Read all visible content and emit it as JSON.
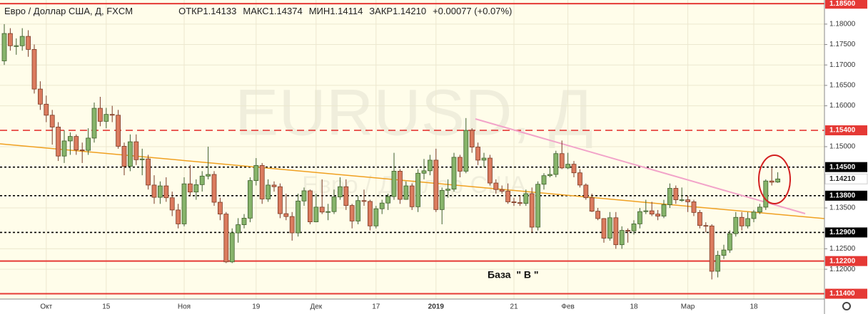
{
  "chart_data": {
    "type": "candlestick",
    "title": "Евро / Доллар США, Д, FXCM",
    "ohlc_header": [
      {
        "label": "ОТКР",
        "value": "1.14133"
      },
      {
        "label": "МАКС",
        "value": "1.14374"
      },
      {
        "label": "МИН",
        "value": "1.14114"
      },
      {
        "label": "ЗАКР",
        "value": "1.14210"
      }
    ],
    "change": "+0.00077 (+0.07%)",
    "watermark": "EURUSD, Д",
    "watermark_subtitle": "Евро / Доллар США",
    "annotation": "База  \" В \"",
    "up_color": "#86b46a",
    "down_color": "#db7b5e",
    "categories": [
      null,
      null,
      null,
      null,
      null,
      null,
      null,
      "Окт",
      null,
      null,
      null,
      null,
      null,
      null,
      null,
      null,
      null,
      "15",
      null,
      null,
      null,
      null,
      null,
      null,
      null,
      null,
      null,
      null,
      null,
      null,
      "Ноя",
      null,
      null,
      null,
      null,
      null,
      null,
      null,
      null,
      null,
      null,
      null,
      "19",
      null,
      null,
      null,
      null,
      null,
      null,
      null,
      null,
      null,
      "Дек",
      null,
      null,
      null,
      null,
      null,
      null,
      null,
      null,
      null,
      "17",
      null,
      null,
      null,
      null,
      null,
      null,
      null,
      null,
      null,
      "2019",
      null,
      null,
      null,
      null,
      null,
      null,
      null,
      null,
      null,
      null,
      null,
      null,
      "21",
      null,
      null,
      null,
      null,
      null,
      null,
      null,
      null,
      "Фев",
      null,
      null,
      null,
      null,
      null,
      null,
      null,
      null,
      null,
      null,
      "18",
      null,
      null,
      null,
      null,
      null,
      null,
      null,
      null,
      "Мар",
      null,
      null,
      null,
      null,
      null,
      null,
      null,
      null,
      null,
      null,
      "18",
      null,
      null,
      null,
      null
    ],
    "open": [
      1.171,
      1.1777,
      1.1747,
      1.1747,
      1.177,
      1.1738,
      1.1641,
      1.1604,
      1.1577,
      1.1548,
      1.1477,
      1.1514,
      1.1525,
      1.1492,
      1.1491,
      1.1521,
      1.1594,
      1.1562,
      1.1579,
      1.1577,
      1.1501,
      1.1452,
      1.1512,
      1.1468,
      1.147,
      1.1406,
      1.1376,
      1.1404,
      1.1375,
      1.1345,
      1.1311,
      1.1409,
      1.1389,
      1.1407,
      1.1428,
      1.1432,
      1.1364,
      1.1335,
      1.1218,
      1.1289,
      1.1309,
      1.1325,
      1.1417,
      1.1454,
      1.1372,
      1.1406,
      1.1402,
      1.1336,
      1.1329,
      1.1289,
      1.1367,
      1.1392,
      1.1316,
      1.1352,
      1.134,
      1.1341,
      1.1377,
      1.1402,
      1.1356,
      1.1318,
      1.1368,
      1.1366,
      1.1306,
      1.1348,
      1.1362,
      1.1378,
      1.144,
      1.1371,
      1.1404,
      1.1353,
      1.1435,
      1.1441,
      1.1467,
      1.1346,
      1.1393,
      1.1396,
      1.1474,
      1.144,
      1.154,
      1.1499,
      1.1467,
      1.1472,
      1.1411,
      1.1395,
      1.1391,
      1.1365,
      1.1363,
      1.1361,
      1.1385,
      1.1303,
      1.1408,
      1.1429,
      1.1432,
      1.1483,
      1.1448,
      1.1457,
      1.1436,
      1.1406,
      1.1375,
      1.1342,
      1.1324,
      1.1276,
      1.1326,
      1.126,
      1.1295,
      1.1294,
      1.1311,
      1.1341,
      1.1343,
      1.1335,
      1.133,
      1.1358,
      1.1398,
      1.137,
      1.137,
      1.1365,
      1.1339,
      1.1307,
      1.1306,
      1.1195,
      1.1234,
      1.1247,
      1.1287,
      1.1327,
      1.1306,
      1.1324,
      1.134,
      1.1352,
      1.1416,
      1.14133
    ],
    "high": [
      1.18,
      1.179,
      1.1765,
      1.179,
      1.1785,
      1.175,
      1.166,
      1.1625,
      1.159,
      1.156,
      1.154,
      1.1535,
      1.153,
      1.151,
      1.1545,
      1.1608,
      1.1622,
      1.1595,
      1.16,
      1.159,
      1.151,
      1.153,
      1.153,
      1.1495,
      1.148,
      1.143,
      1.1415,
      1.1425,
      1.139,
      1.136,
      1.1425,
      1.1455,
      1.142,
      1.144,
      1.15,
      1.144,
      1.1375,
      1.134,
      1.13,
      1.1325,
      1.1335,
      1.1425,
      1.1472,
      1.146,
      1.142,
      1.1415,
      1.141,
      1.1385,
      1.134,
      1.1385,
      1.14,
      1.1395,
      1.1385,
      1.142,
      1.136,
      1.1395,
      1.1425,
      1.142,
      1.136,
      1.138,
      1.1395,
      1.137,
      1.1355,
      1.137,
      1.1385,
      1.1485,
      1.1445,
      1.1415,
      1.141,
      1.1445,
      1.147,
      1.148,
      1.1495,
      1.14,
      1.142,
      1.1485,
      1.148,
      1.157,
      1.1545,
      1.151,
      1.1485,
      1.148,
      1.142,
      1.1405,
      1.141,
      1.1375,
      1.138,
      1.1395,
      1.14,
      1.1415,
      1.1435,
      1.145,
      1.149,
      1.1515,
      1.1485,
      1.1465,
      1.1445,
      1.141,
      1.1385,
      1.135,
      1.1325,
      1.134,
      1.134,
      1.1305,
      1.13,
      1.132,
      1.135,
      1.137,
      1.1365,
      1.1345,
      1.137,
      1.141,
      1.1405,
      1.14,
      1.138,
      1.137,
      1.1345,
      1.1315,
      1.131,
      1.1245,
      1.126,
      1.1295,
      1.134,
      1.134,
      1.134,
      1.1345,
      1.136,
      1.142,
      1.1448,
      1.14374
    ],
    "low": [
      1.17,
      1.1735,
      1.1725,
      1.1735,
      1.172,
      1.163,
      1.159,
      1.156,
      1.1505,
      1.1465,
      1.146,
      1.148,
      1.148,
      1.146,
      1.148,
      1.151,
      1.155,
      1.1545,
      1.156,
      1.1495,
      1.143,
      1.144,
      1.1455,
      1.143,
      1.1395,
      1.136,
      1.136,
      1.1365,
      1.133,
      1.13,
      1.1305,
      1.138,
      1.137,
      1.139,
      1.142,
      1.1355,
      1.132,
      1.1215,
      1.1215,
      1.1265,
      1.13,
      1.1315,
      1.1405,
      1.136,
      1.1365,
      1.139,
      1.1325,
      1.132,
      1.127,
      1.128,
      1.1355,
      1.131,
      1.1315,
      1.1335,
      1.132,
      1.1335,
      1.137,
      1.1345,
      1.13,
      1.131,
      1.1355,
      1.1295,
      1.13,
      1.1335,
      1.1345,
      1.137,
      1.136,
      1.137,
      1.1345,
      1.134,
      1.142,
      1.143,
      1.134,
      1.131,
      1.1375,
      1.139,
      1.1425,
      1.1435,
      1.1485,
      1.1455,
      1.145,
      1.1405,
      1.1385,
      1.1385,
      1.136,
      1.1355,
      1.1355,
      1.1355,
      1.129,
      1.1295,
      1.1395,
      1.1425,
      1.1425,
      1.1445,
      1.1445,
      1.1425,
      1.14,
      1.137,
      1.134,
      1.132,
      1.1265,
      1.127,
      1.125,
      1.125,
      1.1265,
      1.1285,
      1.13,
      1.1335,
      1.133,
      1.132,
      1.1325,
      1.135,
      1.136,
      1.1365,
      1.134,
      1.133,
      1.13,
      1.129,
      1.1175,
      1.118,
      1.1225,
      1.124,
      1.128,
      1.1295,
      1.13,
      1.1315,
      1.1335,
      1.1345,
      1.1405,
      1.14114
    ],
    "close": [
      1.1777,
      1.1747,
      1.1747,
      1.177,
      1.1738,
      1.1641,
      1.1604,
      1.1577,
      1.1548,
      1.1477,
      1.1514,
      1.1525,
      1.1492,
      1.1491,
      1.1521,
      1.1594,
      1.1562,
      1.1579,
      1.1577,
      1.1501,
      1.1452,
      1.1512,
      1.1468,
      1.147,
      1.1406,
      1.1376,
      1.1404,
      1.1375,
      1.1345,
      1.1311,
      1.1409,
      1.1389,
      1.1407,
      1.1428,
      1.1432,
      1.1364,
      1.1335,
      1.1218,
      1.1289,
      1.1309,
      1.1325,
      1.1417,
      1.1454,
      1.1372,
      1.1406,
      1.1402,
      1.1336,
      1.1329,
      1.1289,
      1.1367,
      1.1392,
      1.1316,
      1.1352,
      1.134,
      1.1341,
      1.1377,
      1.1402,
      1.1356,
      1.1318,
      1.1368,
      1.1366,
      1.1306,
      1.1348,
      1.1362,
      1.1378,
      1.144,
      1.1371,
      1.1404,
      1.1353,
      1.1435,
      1.1441,
      1.1467,
      1.1346,
      1.1393,
      1.1396,
      1.1474,
      1.144,
      1.154,
      1.1499,
      1.1467,
      1.1472,
      1.1411,
      1.1395,
      1.1391,
      1.1365,
      1.1363,
      1.1361,
      1.1385,
      1.1303,
      1.1408,
      1.1429,
      1.1432,
      1.1483,
      1.1448,
      1.1457,
      1.1436,
      1.1406,
      1.1375,
      1.1342,
      1.1324,
      1.1276,
      1.1326,
      1.126,
      1.1295,
      1.1294,
      1.1311,
      1.1341,
      1.1343,
      1.1335,
      1.133,
      1.1358,
      1.1398,
      1.137,
      1.137,
      1.1365,
      1.1339,
      1.1307,
      1.1306,
      1.1195,
      1.1234,
      1.1247,
      1.1287,
      1.1327,
      1.1306,
      1.1324,
      1.134,
      1.1352,
      1.1416,
      1.1413,
      1.1421
    ],
    "ylim": [
      1.1127,
      1.1859
    ],
    "yticks": [
      {
        "value": 1.18,
        "label": "1.18000"
      },
      {
        "value": 1.175,
        "label": "1.17500"
      },
      {
        "value": 1.17,
        "label": "1.17000"
      },
      {
        "value": 1.165,
        "label": "1.16500"
      },
      {
        "value": 1.16,
        "label": "1.16000"
      },
      {
        "value": 1.15,
        "label": "1.15000"
      },
      {
        "value": 1.135,
        "label": "1.13500"
      },
      {
        "value": 1.125,
        "label": "1.12500"
      },
      {
        "value": 1.12,
        "label": "1.12000"
      }
    ],
    "levels": [
      {
        "value": 1.185,
        "label": "1.18500",
        "color": "#e53935",
        "style": "solid"
      },
      {
        "value": 1.154,
        "label": "1.15400",
        "color": "#e53935",
        "style": "dashed"
      },
      {
        "value": 1.145,
        "label": "1.14500",
        "color": "#000000",
        "style": "dotted"
      },
      {
        "value": 1.138,
        "label": "1.13800",
        "color": "#000000",
        "style": "dotted"
      },
      {
        "value": 1.129,
        "label": "1.12900",
        "color": "#000000",
        "style": "dotted"
      },
      {
        "value": 1.122,
        "label": "1.12200",
        "color": "#e53935",
        "style": "solid"
      },
      {
        "value": 1.114,
        "label": "1.11400",
        "color": "#e53935",
        "style": "solid"
      }
    ],
    "last_price": {
      "value": 1.1421,
      "label": "1.14210"
    },
    "grid": true
  }
}
